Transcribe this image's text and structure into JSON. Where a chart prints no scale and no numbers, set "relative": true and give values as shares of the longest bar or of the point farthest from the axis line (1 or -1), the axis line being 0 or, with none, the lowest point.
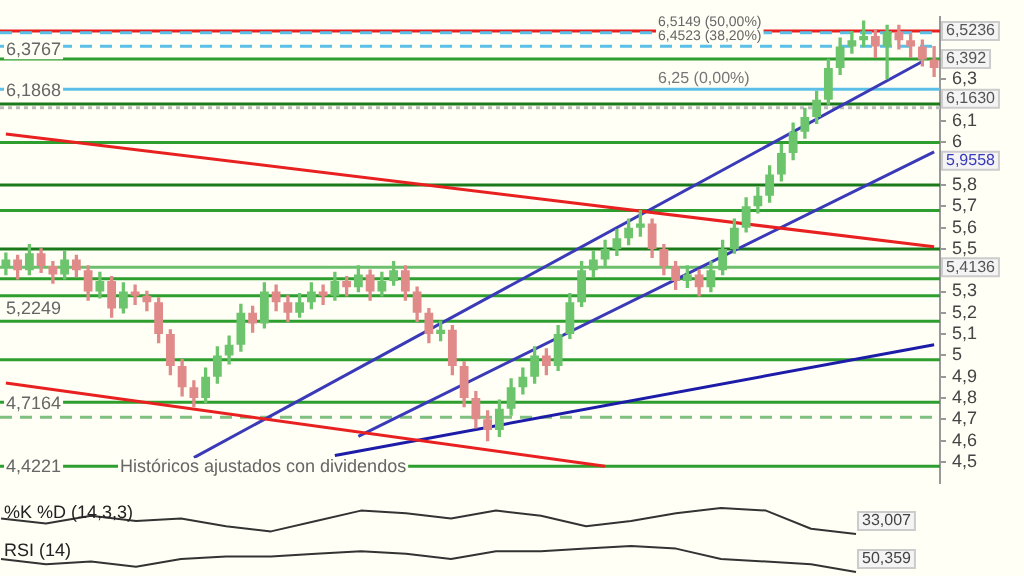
{
  "chart_data": [
    {
      "type": "candlestick",
      "categories": [
        null,
        null,
        null,
        null,
        null,
        null,
        null,
        null,
        null,
        null,
        null,
        null,
        null,
        null,
        null,
        null,
        null,
        null,
        null,
        null,
        null,
        null,
        null,
        null,
        null,
        null,
        null,
        null,
        null,
        null,
        null,
        null,
        null,
        null,
        null,
        null,
        null,
        null,
        null,
        null,
        null,
        null,
        null,
        null,
        null,
        null,
        null,
        null,
        null,
        null,
        null,
        null,
        null,
        null,
        null,
        null,
        null,
        null,
        null,
        null,
        null,
        null,
        null,
        null,
        null,
        null,
        null,
        null,
        null,
        null,
        null,
        null,
        null,
        null,
        null,
        null,
        null,
        null,
        null,
        null
      ],
      "ohlc": [
        [
          5.42,
          5.48,
          5.38,
          5.45
        ],
        [
          5.45,
          5.47,
          5.36,
          5.4
        ],
        [
          5.4,
          5.52,
          5.38,
          5.48
        ],
        [
          5.48,
          5.5,
          5.39,
          5.42
        ],
        [
          5.42,
          5.44,
          5.34,
          5.38
        ],
        [
          5.38,
          5.49,
          5.36,
          5.45
        ],
        [
          5.45,
          5.47,
          5.37,
          5.4
        ],
        [
          5.4,
          5.42,
          5.26,
          5.3
        ],
        [
          5.3,
          5.39,
          5.27,
          5.35
        ],
        [
          5.35,
          5.37,
          5.18,
          5.22
        ],
        [
          5.22,
          5.34,
          5.2,
          5.3
        ],
        [
          5.3,
          5.33,
          5.24,
          5.28
        ],
        [
          5.28,
          5.3,
          5.21,
          5.25
        ],
        [
          5.25,
          5.27,
          5.06,
          5.1
        ],
        [
          5.1,
          5.12,
          4.91,
          4.95
        ],
        [
          4.95,
          4.98,
          4.81,
          4.85
        ],
        [
          4.85,
          4.88,
          4.76,
          4.8
        ],
        [
          4.8,
          4.94,
          4.78,
          4.9
        ],
        [
          4.9,
          5.04,
          4.87,
          5.0
        ],
        [
          5.0,
          5.09,
          4.96,
          5.05
        ],
        [
          5.05,
          5.24,
          5.02,
          5.2
        ],
        [
          5.2,
          5.23,
          5.11,
          5.15
        ],
        [
          5.15,
          5.34,
          5.13,
          5.3
        ],
        [
          5.3,
          5.33,
          5.21,
          5.25
        ],
        [
          5.25,
          5.28,
          5.16,
          5.2
        ],
        [
          5.2,
          5.29,
          5.18,
          5.25
        ],
        [
          5.25,
          5.34,
          5.22,
          5.3
        ],
        [
          5.3,
          5.33,
          5.24,
          5.28
        ],
        [
          5.28,
          5.39,
          5.26,
          5.35
        ],
        [
          5.35,
          5.37,
          5.28,
          5.32
        ],
        [
          5.32,
          5.42,
          5.3,
          5.38
        ],
        [
          5.38,
          5.4,
          5.26,
          5.3
        ],
        [
          5.3,
          5.39,
          5.28,
          5.35
        ],
        [
          5.35,
          5.44,
          5.33,
          5.4
        ],
        [
          5.4,
          5.42,
          5.26,
          5.3
        ],
        [
          5.3,
          5.32,
          5.16,
          5.2
        ],
        [
          5.2,
          5.22,
          5.06,
          5.1
        ],
        [
          5.1,
          5.16,
          5.07,
          5.12
        ],
        [
          5.12,
          5.14,
          4.91,
          4.95
        ],
        [
          4.95,
          4.97,
          4.76,
          4.8
        ],
        [
          4.8,
          4.83,
          4.66,
          4.7
        ],
        [
          4.7,
          4.74,
          4.6,
          4.65
        ],
        [
          4.65,
          4.79,
          4.62,
          4.75
        ],
        [
          4.75,
          4.89,
          4.72,
          4.85
        ],
        [
          4.85,
          4.94,
          4.82,
          4.9
        ],
        [
          4.9,
          5.04,
          4.87,
          5.0
        ],
        [
          5.0,
          5.03,
          4.91,
          4.95
        ],
        [
          4.95,
          5.14,
          4.93,
          5.1
        ],
        [
          5.1,
          5.29,
          5.08,
          5.25
        ],
        [
          5.25,
          5.44,
          5.23,
          5.4
        ],
        [
          5.4,
          5.49,
          5.37,
          5.45
        ],
        [
          5.45,
          5.54,
          5.42,
          5.5
        ],
        [
          5.5,
          5.59,
          5.47,
          5.55
        ],
        [
          5.55,
          5.64,
          5.52,
          5.6
        ],
        [
          5.6,
          5.68,
          5.56,
          5.62
        ],
        [
          5.62,
          5.64,
          5.46,
          5.5
        ],
        [
          5.5,
          5.52,
          5.38,
          5.42
        ],
        [
          5.42,
          5.44,
          5.31,
          5.35
        ],
        [
          5.35,
          5.42,
          5.32,
          5.38
        ],
        [
          5.38,
          5.4,
          5.28,
          5.32
        ],
        [
          5.32,
          5.44,
          5.3,
          5.4
        ],
        [
          5.4,
          5.54,
          5.38,
          5.5
        ],
        [
          5.5,
          5.64,
          5.48,
          5.6
        ],
        [
          5.6,
          5.74,
          5.58,
          5.7
        ],
        [
          5.7,
          5.79,
          5.67,
          5.75
        ],
        [
          5.75,
          5.89,
          5.72,
          5.85
        ],
        [
          5.85,
          5.99,
          5.82,
          5.95
        ],
        [
          5.95,
          6.09,
          5.92,
          6.05
        ],
        [
          6.05,
          6.16,
          6.02,
          6.12
        ],
        [
          6.12,
          6.24,
          6.09,
          6.2
        ],
        [
          6.2,
          6.39,
          6.18,
          6.35
        ],
        [
          6.35,
          6.49,
          6.32,
          6.45
        ],
        [
          6.45,
          6.52,
          6.42,
          6.48
        ],
        [
          6.48,
          6.57,
          6.45,
          6.5
        ],
        [
          6.5,
          6.53,
          6.4,
          6.45
        ],
        [
          6.45,
          6.55,
          6.3,
          6.52
        ],
        [
          6.52,
          6.55,
          6.44,
          6.48
        ],
        [
          6.48,
          6.51,
          6.4,
          6.45
        ],
        [
          6.45,
          6.48,
          6.36,
          6.39
        ],
        [
          6.39,
          6.45,
          6.31,
          6.35
        ]
      ],
      "series": [
        {
          "type": "line",
          "color": "#e82020",
          "values": [
            6.04,
            null,
            null,
            null,
            null,
            null,
            null,
            null,
            null,
            null,
            null,
            null,
            null,
            null,
            null,
            null,
            null,
            null,
            null,
            null,
            null,
            null,
            null,
            null,
            null,
            null,
            null,
            null,
            null,
            null,
            null,
            null,
            null,
            null,
            null,
            null,
            null,
            null,
            null,
            null,
            null,
            null,
            null,
            null,
            null,
            null,
            null,
            null,
            null,
            null,
            null,
            null,
            null,
            null,
            null,
            null,
            null,
            null,
            null,
            null,
            null,
            null,
            null,
            null,
            null,
            null,
            null,
            null,
            null,
            null,
            null,
            null,
            null,
            null,
            null,
            null,
            null,
            null,
            null,
            5.51
          ]
        },
        {
          "type": "line",
          "color": "#e82020",
          "values": [
            4.87,
            null,
            null,
            null,
            null,
            null,
            null,
            null,
            null,
            null,
            null,
            null,
            null,
            null,
            null,
            null,
            null,
            null,
            null,
            null,
            null,
            null,
            null,
            null,
            null,
            null,
            null,
            null,
            null,
            null,
            null,
            null,
            null,
            null,
            null,
            null,
            null,
            null,
            null,
            null,
            null,
            null,
            null,
            null,
            null,
            null,
            null,
            null,
            null,
            null,
            null,
            4.48,
            null,
            null,
            null,
            null,
            null,
            null,
            null,
            null,
            null,
            null,
            null,
            null,
            null,
            null,
            null,
            null,
            null,
            null,
            null,
            null,
            null,
            null,
            null,
            null,
            null,
            null,
            null,
            null
          ]
        },
        {
          "type": "line",
          "color": "#1c1ca8",
          "values": [
            null,
            null,
            null,
            null,
            null,
            null,
            null,
            null,
            null,
            null,
            null,
            null,
            null,
            null,
            null,
            null,
            null,
            null,
            null,
            null,
            null,
            null,
            null,
            null,
            null,
            null,
            null,
            null,
            4.53,
            null,
            null,
            null,
            null,
            null,
            null,
            null,
            null,
            null,
            null,
            null,
            null,
            null,
            null,
            null,
            null,
            null,
            null,
            null,
            null,
            null,
            null,
            null,
            null,
            null,
            null,
            null,
            null,
            null,
            null,
            null,
            null,
            null,
            null,
            null,
            null,
            null,
            null,
            null,
            null,
            null,
            null,
            null,
            null,
            null,
            null,
            null,
            null,
            null,
            null,
            5.05
          ]
        },
        {
          "type": "line",
          "color": "#3a3ab8",
          "values": [
            null,
            null,
            null,
            null,
            null,
            null,
            null,
            null,
            null,
            null,
            null,
            null,
            null,
            null,
            null,
            null,
            4.52,
            null,
            null,
            null,
            null,
            null,
            null,
            null,
            null,
            null,
            null,
            null,
            null,
            null,
            null,
            null,
            null,
            null,
            null,
            null,
            null,
            null,
            null,
            null,
            null,
            null,
            null,
            null,
            null,
            null,
            null,
            null,
            null,
            null,
            null,
            null,
            null,
            null,
            null,
            null,
            null,
            null,
            null,
            null,
            null,
            null,
            null,
            null,
            null,
            null,
            null,
            null,
            null,
            null,
            null,
            null,
            null,
            null,
            null,
            null,
            null,
            null,
            6.38,
            null
          ]
        },
        {
          "type": "line",
          "name": "5,9558",
          "color": "#3a3ab8",
          "values": [
            null,
            null,
            null,
            null,
            null,
            null,
            null,
            null,
            null,
            null,
            null,
            null,
            null,
            null,
            null,
            null,
            null,
            null,
            null,
            null,
            null,
            null,
            null,
            null,
            null,
            null,
            null,
            null,
            null,
            null,
            4.62,
            null,
            null,
            null,
            null,
            null,
            null,
            null,
            null,
            null,
            null,
            null,
            null,
            null,
            null,
            null,
            null,
            null,
            null,
            null,
            null,
            null,
            null,
            null,
            null,
            null,
            null,
            null,
            null,
            null,
            null,
            null,
            null,
            null,
            null,
            null,
            null,
            null,
            null,
            null,
            null,
            null,
            null,
            null,
            null,
            null,
            null,
            null,
            null,
            5.9558
          ]
        }
      ],
      "ylim": [
        4.4,
        6.59
      ],
      "yticks": [
        {
          "value": 4.5,
          "label": "4,5"
        },
        {
          "value": 4.6,
          "label": "4,6"
        },
        {
          "value": 4.7,
          "label": "4,7"
        },
        {
          "value": 4.8,
          "label": "4,8"
        },
        {
          "value": 4.9,
          "label": "4,9"
        },
        {
          "value": 5,
          "label": "5"
        },
        {
          "value": 5.1,
          "label": "5,1"
        },
        {
          "value": 5.2,
          "label": "5,2"
        },
        {
          "value": 5.3,
          "label": "5,3"
        },
        {
          "value": 5.4,
          "label": null
        },
        {
          "value": 5.5,
          "label": "5,5"
        },
        {
          "value": 5.6,
          "label": "5,6"
        },
        {
          "value": 5.7,
          "label": "5,7"
        },
        {
          "value": 5.8,
          "label": "5,8"
        },
        {
          "value": 6,
          "label": "6"
        },
        {
          "value": 6.1,
          "label": "6,1"
        },
        {
          "value": 6.3,
          "label": "6,3"
        }
      ],
      "tick_labels": "y",
      "ref_lines": [
        {
          "axis": "y",
          "value": 6.5236,
          "label": "6,5236",
          "color": "#e82020"
        },
        {
          "axis": "y",
          "value": 6.5149,
          "color": "#5bbfe8",
          "line_style": "dashed"
        },
        {
          "axis": "y",
          "value": 6.4523,
          "color": "#5bbfe8",
          "line_style": "dashed"
        },
        {
          "axis": "y",
          "value": 6.392,
          "label": "6,392",
          "color": "#2e9e2e"
        },
        {
          "axis": "y",
          "value": 6.25,
          "label": "6,25 (0,00%)",
          "color": "#5bbfe8"
        },
        {
          "axis": "y",
          "value": 6.18,
          "color": "#1a7a1a"
        },
        {
          "axis": "y",
          "value": 6.163,
          "label": "6,1630",
          "color": "#bbbbbb",
          "line_style": "dotted"
        },
        {
          "axis": "y",
          "value": 6.0,
          "color": "#2e9e2e"
        },
        {
          "axis": "y",
          "value": 5.8,
          "color": "#1a7a1a"
        },
        {
          "axis": "y",
          "value": 5.68,
          "color": "#2e9e2e"
        },
        {
          "axis": "y",
          "value": 5.5,
          "color": "#1a7a1a"
        },
        {
          "axis": "y",
          "value": 5.4136,
          "label": "5,4136",
          "color": "#6cbf6c"
        },
        {
          "axis": "y",
          "value": 5.36,
          "color": "#2e9e2e"
        },
        {
          "axis": "y",
          "value": 5.28,
          "color": "#2e9e2e"
        },
        {
          "axis": "y",
          "value": 5.16,
          "color": "#2e9e2e"
        },
        {
          "axis": "y",
          "value": 4.98,
          "color": "#2e9e2e"
        },
        {
          "axis": "y",
          "value": 4.78,
          "color": "#2e9e2e"
        },
        {
          "axis": "y",
          "value": 4.71,
          "color": "#7fbf7f",
          "line_style": "dashed"
        },
        {
          "axis": "y",
          "value": 4.48,
          "color": "#2e9e2e"
        }
      ],
      "annotations": [
        {
          "text": "6,5149 (50,00%)",
          "y": 6.5149
        },
        {
          "text": "6,4523 (38,20%)",
          "y": 6.4523
        },
        {
          "text": "6,3767",
          "y": 6.3767
        },
        {
          "text": "6,1868",
          "y": 6.1868
        },
        {
          "text": "4,7164",
          "y": 4.7164
        },
        "5,2249",
        "4,4221",
        "Históricos ajustados con dividendos"
      ]
    },
    {
      "type": "line",
      "relative": true,
      "categories": [
        null,
        null,
        null,
        null,
        null,
        null,
        null,
        null,
        null,
        null,
        null,
        null,
        null,
        null,
        null,
        null,
        null,
        null,
        null,
        null
      ],
      "values": [
        0.6,
        0.4,
        0.7,
        0.5,
        0.6,
        0.3,
        0.1,
        0.5,
        0.9,
        0.8,
        0.6,
        0.9,
        0.7,
        0.3,
        0.5,
        0.8,
        1,
        0.9,
        0.2,
        0
      ],
      "color": "#333333",
      "annotations": [
        "%K %D (14,3,3)",
        "33,007"
      ]
    },
    {
      "type": "line",
      "relative": true,
      "categories": [
        null,
        null,
        null,
        null,
        null,
        null,
        null,
        null,
        null,
        null,
        null,
        null,
        null,
        null,
        null,
        null,
        null,
        null,
        null,
        null
      ],
      "values": [
        0.5,
        0.3,
        0.4,
        0.2,
        0.5,
        0.6,
        0.6,
        0.7,
        0.8,
        0.7,
        0.5,
        0.8,
        0.8,
        0.9,
        1,
        0.9,
        0.5,
        0.4,
        0.3,
        0
      ],
      "color": "#333333",
      "annotations": [
        "RSI (14)",
        "50,359"
      ]
    }
  ]
}
